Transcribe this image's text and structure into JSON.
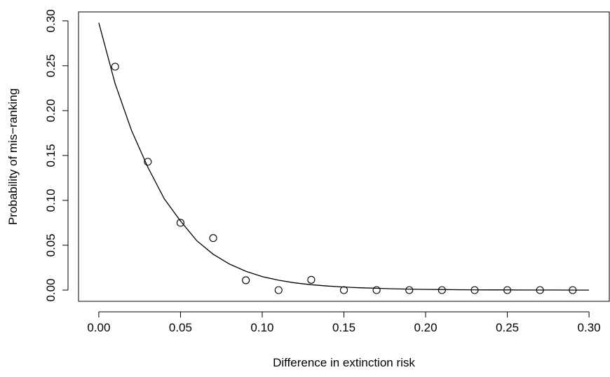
{
  "chart_data": {
    "type": "scatter",
    "xlabel": "Difference in extinction risk",
    "ylabel": "Probability of mis−ranking",
    "xlim": [
      -0.0124,
      0.3124
    ],
    "ylim": [
      -0.0125,
      0.31
    ],
    "x_ticks": [
      "0.00",
      "0.05",
      "0.10",
      "0.15",
      "0.20",
      "0.25",
      "0.30"
    ],
    "y_ticks": [
      "0.00",
      "0.05",
      "0.10",
      "0.15",
      "0.20",
      "0.25",
      "0.30"
    ],
    "grid": false,
    "legend": "none",
    "series": [
      {
        "kind": "points",
        "marker": "open-circle",
        "x": [
          0.01,
          0.03,
          0.05,
          0.07,
          0.09,
          0.11,
          0.13,
          0.15,
          0.17,
          0.19,
          0.21,
          0.23,
          0.25,
          0.27,
          0.29
        ],
        "y": [
          0.249,
          0.143,
          0.075,
          0.058,
          0.011,
          0.0,
          0.0115,
          0.0,
          0.0,
          0.0,
          0.0,
          0.0,
          0.0,
          0.0,
          0.0
        ]
      },
      {
        "kind": "fitted-line",
        "x": [
          0.0,
          0.01,
          0.02,
          0.03,
          0.04,
          0.05,
          0.06,
          0.07,
          0.08,
          0.09,
          0.1,
          0.11,
          0.12,
          0.13,
          0.14,
          0.15,
          0.16,
          0.17,
          0.18,
          0.19,
          0.2,
          0.21,
          0.22,
          0.23,
          0.24,
          0.25,
          0.26,
          0.27,
          0.28,
          0.29,
          0.3
        ],
        "y": [
          0.298,
          0.23,
          0.178,
          0.137,
          0.102,
          0.077,
          0.055,
          0.04,
          0.029,
          0.021,
          0.015,
          0.011,
          0.008,
          0.006,
          0.0045,
          0.0034,
          0.0026,
          0.002,
          0.0015,
          0.0011,
          0.0008,
          0.0006,
          0.0004,
          0.0003,
          0.0002,
          0.0002,
          0.0001,
          0.0001,
          0.0001,
          0.0,
          0.0
        ]
      }
    ]
  }
}
